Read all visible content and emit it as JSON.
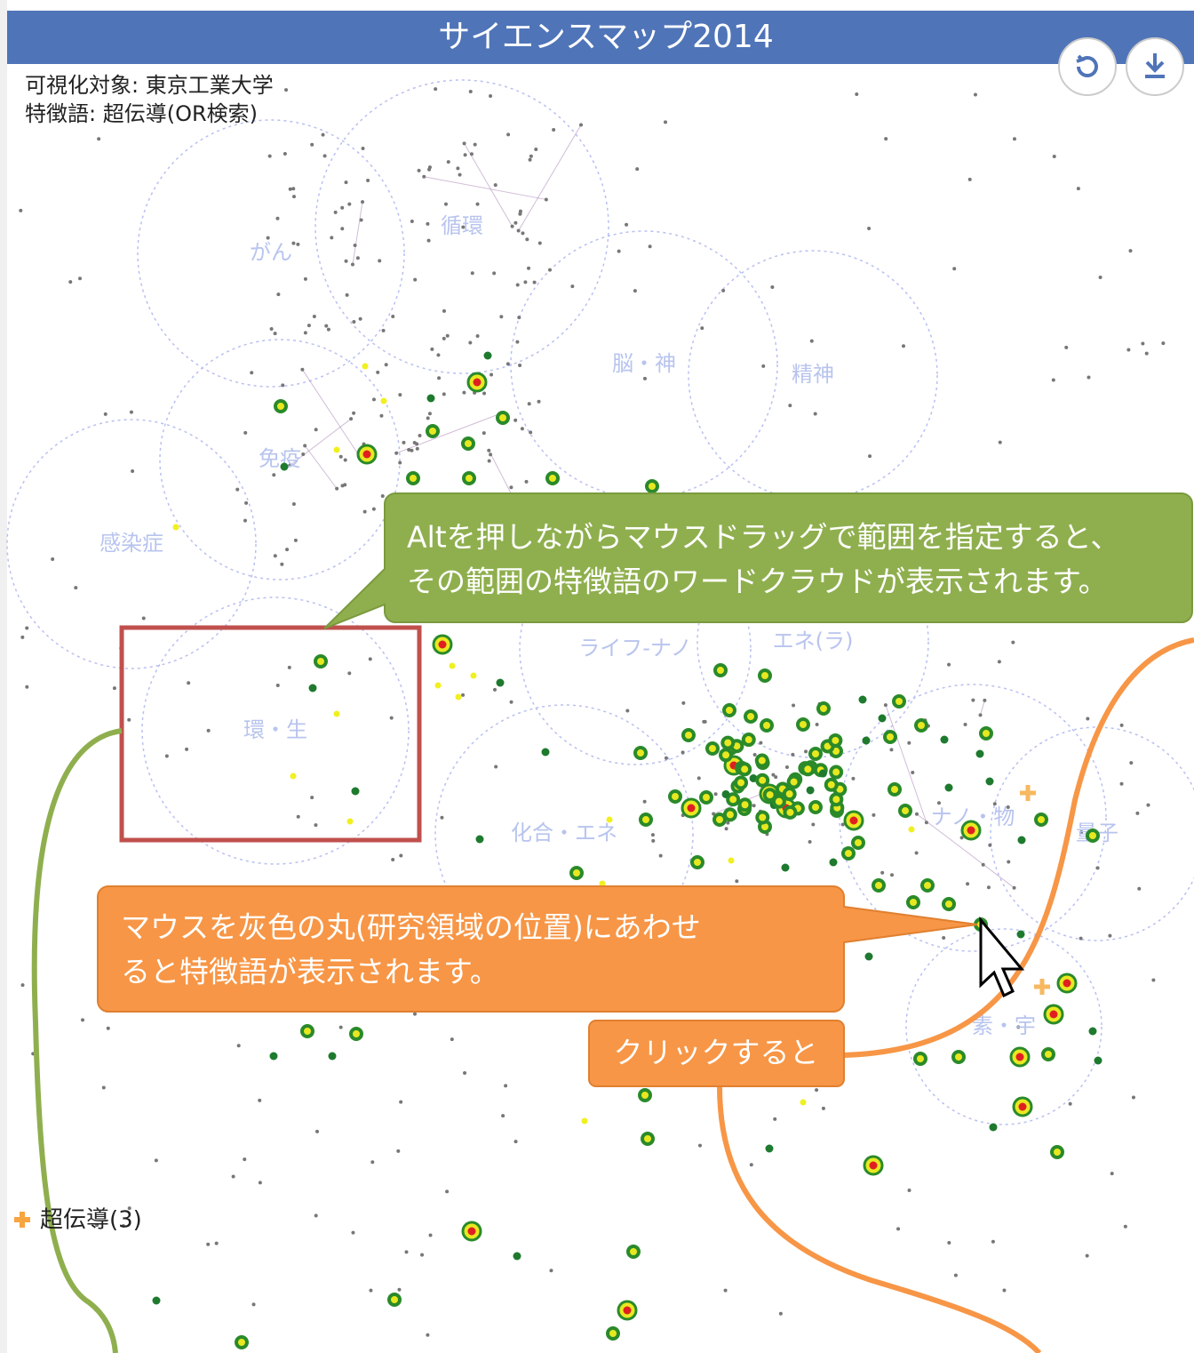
{
  "header": {
    "title": "サイエンスマップ2014"
  },
  "info": {
    "target": "可視化対象: 東京工業大学",
    "keyword": "特徴語: 超伝導(OR検索)"
  },
  "regions": [
    "がん",
    "循環",
    "脳・神",
    "精神",
    "免疫",
    "感染症",
    "環・生",
    "化合・エネ",
    "ライフ-ナノ",
    "エネ(ラ)",
    "ナノ・物",
    "量子",
    "素・宇"
  ],
  "callouts": {
    "drag": [
      "Altを押しながらマウスドラッグで範囲を指定すると、",
      "その範囲の特徴語のワードクラウドが表示されます。"
    ],
    "hover": [
      "マウスを灰色の丸(研究領域の位置)にあわせ",
      "ると特徴語が表示されます。"
    ],
    "click": "クリックすると"
  },
  "legend": {
    "label": "超伝導(3)"
  }
}
